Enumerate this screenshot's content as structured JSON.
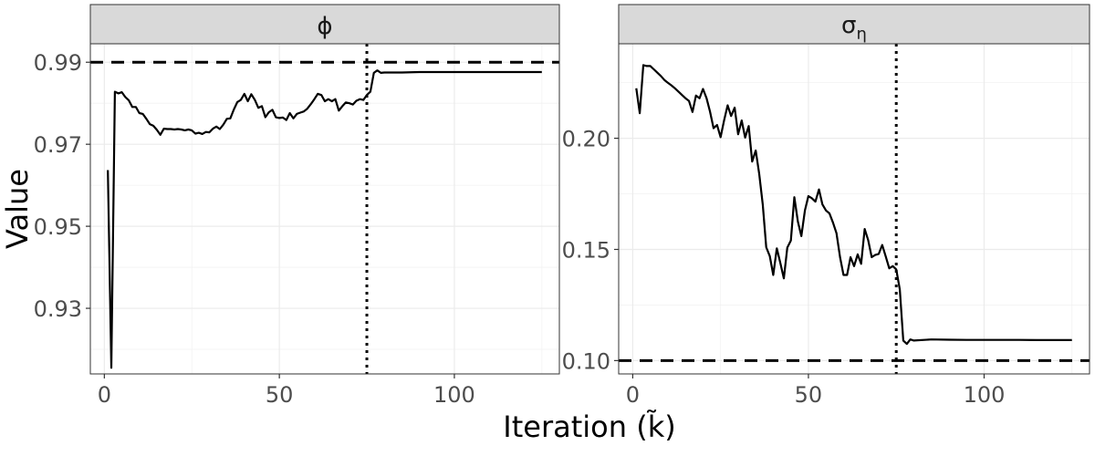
{
  "chart_data": {
    "type": "line",
    "xlabel": "Iteration (k̃)",
    "ylabel": "Value",
    "panels": [
      {
        "strip_label": "ϕ",
        "strip_sub": "",
        "xlim": [
          -4,
          130
        ],
        "ylim": [
          0.914,
          0.9945
        ],
        "xticks": [
          0,
          50,
          100
        ],
        "yticks": [
          0.93,
          0.95,
          0.97,
          0.99
        ],
        "ytick_labels": [
          "0.93",
          "0.95",
          "0.97",
          "0.99"
        ],
        "hline": 0.99,
        "vline": 75,
        "series": [
          {
            "name": "phi",
            "x": [
              1,
              2,
              3,
              4,
              5,
              6,
              7,
              8,
              9,
              10,
              11,
              12,
              13,
              14,
              15,
              16,
              17,
              18,
              19,
              20,
              21,
              22,
              23,
              24,
              25,
              26,
              27,
              28,
              29,
              30,
              31,
              32,
              33,
              34,
              35,
              36,
              37,
              38,
              39,
              40,
              41,
              42,
              43,
              44,
              45,
              46,
              47,
              48,
              49,
              50,
              51,
              52,
              53,
              54,
              55,
              56,
              57,
              58,
              59,
              60,
              61,
              62,
              63,
              64,
              65,
              66,
              67,
              68,
              69,
              70,
              71,
              72,
              73,
              74,
              75,
              76,
              77,
              78,
              79,
              80,
              85,
              90,
              95,
              100,
              105,
              110,
              115,
              120,
              125
            ],
            "y": [
              0.9637,
              0.9155,
              0.9828,
              0.9824,
              0.9827,
              0.9815,
              0.9807,
              0.9791,
              0.9791,
              0.9776,
              0.9774,
              0.9762,
              0.9749,
              0.9745,
              0.9735,
              0.9723,
              0.9738,
              0.9737,
              0.9737,
              0.9736,
              0.9737,
              0.9736,
              0.9734,
              0.9736,
              0.9734,
              0.9726,
              0.9728,
              0.9725,
              0.973,
              0.9729,
              0.9738,
              0.9743,
              0.9737,
              0.9748,
              0.9762,
              0.9763,
              0.9785,
              0.9803,
              0.9808,
              0.9823,
              0.9805,
              0.9822,
              0.9808,
              0.9789,
              0.9793,
              0.9766,
              0.9778,
              0.9784,
              0.9766,
              0.9764,
              0.9765,
              0.9759,
              0.9776,
              0.9763,
              0.9774,
              0.9777,
              0.978,
              0.9787,
              0.9798,
              0.981,
              0.9823,
              0.982,
              0.9805,
              0.981,
              0.9805,
              0.981,
              0.9782,
              0.9793,
              0.9802,
              0.98,
              0.9797,
              0.9806,
              0.981,
              0.9808,
              0.982,
              0.9828,
              0.9874,
              0.988,
              0.9874,
              0.9875,
              0.9875,
              0.9876,
              0.9876,
              0.9876,
              0.9876,
              0.9876,
              0.9876,
              0.9876,
              0.9876
            ]
          }
        ]
      },
      {
        "strip_label": "σ",
        "strip_sub": "η",
        "xlim": [
          -4,
          130
        ],
        "ylim": [
          0.094,
          0.2425
        ],
        "xticks": [
          0,
          50,
          100
        ],
        "yticks": [
          0.1,
          0.15,
          0.2
        ],
        "ytick_labels": [
          "0.10",
          "0.15",
          "0.20"
        ],
        "hline": 0.1,
        "vline": 75,
        "series": [
          {
            "name": "sigma_eta",
            "x": [
              1,
              2,
              3,
              4,
              5,
              6,
              7,
              8,
              9,
              10,
              11,
              12,
              13,
              14,
              15,
              16,
              17,
              18,
              19,
              20,
              21,
              22,
              23,
              24,
              25,
              26,
              27,
              28,
              29,
              30,
              31,
              32,
              33,
              34,
              35,
              36,
              37,
              38,
              39,
              40,
              41,
              42,
              43,
              44,
              45,
              46,
              47,
              48,
              49,
              50,
              51,
              52,
              53,
              54,
              55,
              56,
              57,
              58,
              59,
              60,
              61,
              62,
              63,
              64,
              65,
              66,
              67,
              68,
              69,
              70,
              71,
              72,
              73,
              74,
              75,
              76,
              77,
              78,
              79,
              80,
              85,
              90,
              95,
              100,
              105,
              110,
              115,
              120,
              125
            ],
            "y": [
              0.2225,
              0.2113,
              0.2329,
              0.2325,
              0.2325,
              0.231,
              0.2295,
              0.228,
              0.2262,
              0.225,
              0.2238,
              0.2225,
              0.221,
              0.2195,
              0.218,
              0.2168,
              0.2118,
              0.2192,
              0.218,
              0.2222,
              0.218,
              0.212,
              0.2045,
              0.206,
              0.2005,
              0.208,
              0.2148,
              0.21,
              0.2138,
              0.2018,
              0.208,
              0.2003,
              0.2055,
              0.1895,
              0.1945,
              0.184,
              0.1702,
              0.151,
              0.147,
              0.1385,
              0.1505,
              0.144,
              0.137,
              0.1508,
              0.154,
              0.1735,
              0.1625,
              0.156,
              0.1675,
              0.174,
              0.173,
              0.1715,
              0.177,
              0.1702,
              0.1675,
              0.1662,
              0.162,
              0.1573,
              0.1465,
              0.1385,
              0.1385,
              0.1465,
              0.1425,
              0.1478,
              0.1435,
              0.1592,
              0.1542,
              0.1465,
              0.1475,
              0.148,
              0.152,
              0.1468,
              0.1415,
              0.1425,
              0.141,
              0.132,
              0.109,
              0.1075,
              0.1095,
              0.109,
              0.1095,
              0.1094,
              0.1093,
              0.1093,
              0.1093,
              0.1093,
              0.1092,
              0.1092,
              0.1092
            ]
          }
        ]
      }
    ]
  }
}
